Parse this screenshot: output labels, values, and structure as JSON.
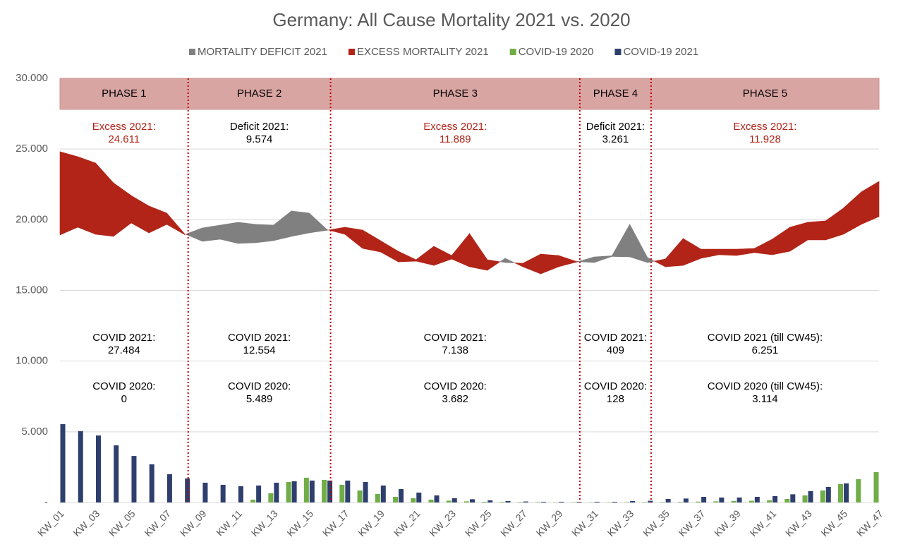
{
  "chart_data": {
    "type": "combo",
    "title": "Germany: All Cause Mortality 2021 vs. 2020",
    "categories": [
      "KW_01",
      null,
      "KW_03",
      null,
      "KW_05",
      null,
      "KW_07",
      null,
      "KW_09",
      null,
      "KW_11",
      null,
      "KW_13",
      null,
      "KW_15",
      null,
      "KW_17",
      null,
      "KW_19",
      null,
      "KW_21",
      null,
      "KW_23",
      null,
      "KW_25",
      null,
      "KW_27",
      null,
      "KW_29",
      null,
      "KW_31",
      null,
      "KW_33",
      null,
      "KW_35",
      null,
      "KW_37",
      null,
      "KW_39",
      null,
      "KW_41",
      null,
      "KW_43",
      null,
      "KW_45",
      null,
      "KW_47"
    ],
    "fills": [
      {
        "name": "MORTALITY DEFICIT 2021",
        "color": "#808080"
      },
      {
        "name": "EXCESS MORTALITY 2021",
        "color": "#b22418"
      }
    ],
    "mortality_2021": {
      "values": [
        24810,
        24460,
        24010,
        22610,
        21710,
        20970,
        20470,
        19000,
        18470,
        18620,
        18320,
        18370,
        18520,
        18820,
        19070,
        19250,
        19470,
        19270,
        18520,
        17770,
        17170,
        18120,
        17470,
        19020,
        17170,
        16970,
        16920,
        17570,
        17470,
        17050,
        16970,
        17400,
        17370,
        16970,
        17220,
        18670,
        17920,
        17920,
        17920,
        17970,
        18620,
        19470,
        19820,
        19920,
        20820,
        21960,
        22710
      ]
    },
    "mortality_2020": {
      "values": [
        18920,
        19470,
        18970,
        18820,
        19770,
        19070,
        19670,
        18950,
        19420,
        19620,
        19820,
        19670,
        19620,
        20620,
        20470,
        19300,
        18970,
        17970,
        17720,
        17020,
        17070,
        16770,
        17220,
        16670,
        16420,
        17270,
        16670,
        16170,
        16670,
        17000,
        17370,
        17450,
        19670,
        17320,
        16670,
        16770,
        17270,
        17520,
        17470,
        17670,
        17520,
        17770,
        18570,
        18570,
        18970,
        19670,
        20220
      ]
    },
    "series": [
      {
        "name": "COVID-19 2020",
        "color": "#70ad47",
        "values": [
          0,
          0,
          0,
          0,
          0,
          0,
          0,
          0,
          0,
          0,
          0,
          200,
          650,
          1450,
          1750,
          1600,
          1250,
          850,
          600,
          400,
          300,
          200,
          130,
          80,
          50,
          40,
          30,
          30,
          20,
          20,
          20,
          20,
          30,
          30,
          30,
          40,
          60,
          80,
          100,
          120,
          150,
          250,
          500,
          850,
          1300,
          1650,
          2150
        ]
      },
      {
        "name": "COVID-19 2021",
        "color": "#2e3f6e",
        "values": [
          5540,
          5040,
          4740,
          4040,
          3290,
          2700,
          2000,
          1700,
          1400,
          1250,
          1150,
          1200,
          1400,
          1500,
          1550,
          1550,
          1550,
          1450,
          1200,
          950,
          700,
          500,
          300,
          230,
          150,
          100,
          70,
          50,
          50,
          50,
          50,
          50,
          100,
          120,
          250,
          280,
          400,
          350,
          350,
          400,
          450,
          580,
          800,
          1100,
          1350,
          null,
          null
        ]
      }
    ],
    "phases": [
      {
        "label": "PHASE 1",
        "mortality_label": "Excess 2021:",
        "mortality_value": "24.611",
        "color": "#b22418",
        "covid_2021_label": "COVID 2021:",
        "covid_2021_value": "27.484",
        "covid_2020_label": "COVID 2020:",
        "covid_2020_value": "0"
      },
      {
        "label": "PHASE 2",
        "mortality_label": "Deficit 2021:",
        "mortality_value": "9.574",
        "color": "#000000",
        "covid_2021_label": "COVID 2021:",
        "covid_2021_value": "12.554",
        "covid_2020_label": "COVID 2020:",
        "covid_2020_value": "5.489"
      },
      {
        "label": "PHASE 3",
        "mortality_label": "Excess 2021:",
        "mortality_value": "11.889",
        "color": "#b22418",
        "covid_2021_label": "COVID 2021:",
        "covid_2021_value": "7.138",
        "covid_2020_label": "COVID 2020:",
        "covid_2020_value": "3.682"
      },
      {
        "label": "PHASE 4",
        "mortality_label": "Deficit 2021:",
        "mortality_value": "3.261",
        "color": "#000000",
        "covid_2021_label": "COVID 2021:",
        "covid_2021_value": "409",
        "covid_2020_label": "COVID 2020:",
        "covid_2020_value": "128"
      },
      {
        "label": "PHASE 5",
        "mortality_label": "Excess 2021:",
        "mortality_value": "11.928",
        "color": "#b22418",
        "covid_2021_label": "COVID 2021 (till CW45):",
        "covid_2021_value": "6.251",
        "covid_2020_label": "COVID 2020 (till CW45):",
        "covid_2020_value": "3.114"
      }
    ],
    "ylim": [
      0,
      30000
    ],
    "yticks": [
      {
        "value": 0,
        "label": "-"
      },
      {
        "value": 5000,
        "label": "5.000"
      },
      {
        "value": 10000,
        "label": "10.000"
      },
      {
        "value": 15000,
        "label": "15.000"
      },
      {
        "value": 20000,
        "label": "20.000"
      },
      {
        "value": 25000,
        "label": "25.000"
      },
      {
        "value": 30000,
        "label": "30.000"
      }
    ],
    "grid": true
  }
}
